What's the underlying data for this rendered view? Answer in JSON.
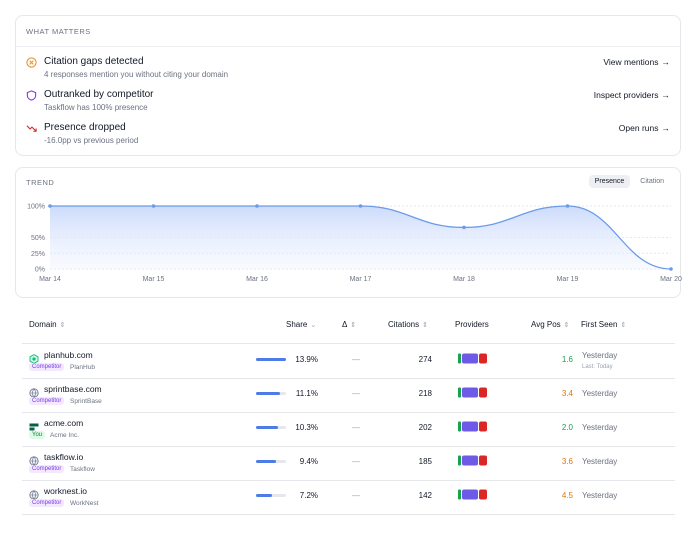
{
  "what_matters": {
    "title": "WHAT MATTERS",
    "items": [
      {
        "icon": "x-circle-icon",
        "title": "Citation gaps detected",
        "subtitle": "4 responses mention you without citing your domain",
        "link": "View mentions",
        "color": "#e8942a"
      },
      {
        "icon": "shield-icon",
        "title": "Outranked by competitor",
        "subtitle": "Taskflow has 100% presence",
        "link": "Inspect providers",
        "color": "#7c3aed"
      },
      {
        "icon": "trend-down-icon",
        "title": "Presence dropped",
        "subtitle": "-16.0pp vs previous period",
        "link": "Open runs",
        "color": "#dc2626"
      }
    ]
  },
  "trend": {
    "title": "TREND",
    "tabs": [
      "Presence",
      "Citation"
    ],
    "active_tab": "Presence"
  },
  "chart_data": {
    "type": "area",
    "x": [
      "Mar 14",
      "Mar 15",
      "Mar 16",
      "Mar 17",
      "Mar 18",
      "Mar 19",
      "Mar 20"
    ],
    "series": [
      {
        "values": [
          100,
          100,
          100,
          100,
          66,
          100,
          0
        ]
      }
    ],
    "yticks": [
      "100%",
      "50%",
      "25%",
      "0%"
    ],
    "ylim": [
      0,
      100
    ],
    "grid": true,
    "color": "#6b9be8"
  },
  "table": {
    "headers": {
      "domain": "Domain",
      "share": "Share",
      "delta": "Δ",
      "citations": "Citations",
      "providers": "Providers",
      "avg_pos": "Avg Pos",
      "first_seen": "First Seen"
    },
    "rows": [
      {
        "domain": "planhub.com",
        "icon": "hexagon-icon",
        "badge": "Competitor",
        "brand": "PlanHub",
        "share": "13.9%",
        "share_value": 0.139,
        "delta": "—",
        "citations": "274",
        "avg_pos": "1.6",
        "avg_color": "#16a34a",
        "first_seen": "Yesterday",
        "last_seen": "Last: Today"
      },
      {
        "domain": "sprintbase.com",
        "icon": "globe-icon",
        "badge": "Competitor",
        "brand": "SprintBase",
        "share": "11.1%",
        "share_value": 0.111,
        "delta": "—",
        "citations": "218",
        "avg_pos": "3.4",
        "avg_color": "#d97706",
        "first_seen": "Yesterday",
        "last_seen": ""
      },
      {
        "domain": "acme.com",
        "icon": "acme-logo-icon",
        "badge": "You",
        "brand": "Acme Inc.",
        "share": "10.3%",
        "share_value": 0.103,
        "delta": "—",
        "citations": "202",
        "avg_pos": "2.0",
        "avg_color": "#16a34a",
        "first_seen": "Yesterday",
        "last_seen": ""
      },
      {
        "domain": "taskflow.io",
        "icon": "globe-icon",
        "badge": "Competitor",
        "brand": "Taskflow",
        "share": "9.4%",
        "share_value": 0.094,
        "delta": "—",
        "citations": "185",
        "avg_pos": "3.6",
        "avg_color": "#d97706",
        "first_seen": "Yesterday",
        "last_seen": ""
      },
      {
        "domain": "worknest.io",
        "icon": "globe-icon",
        "badge": "Competitor",
        "brand": "WorkNest",
        "share": "7.2%",
        "share_value": 0.072,
        "delta": "—",
        "citations": "142",
        "avg_pos": "4.5",
        "avg_color": "#d97706",
        "first_seen": "Yesterday",
        "last_seen": ""
      }
    ],
    "provider_colors": [
      "#16a34a",
      "#6d5be8",
      "#dc2626"
    ]
  }
}
